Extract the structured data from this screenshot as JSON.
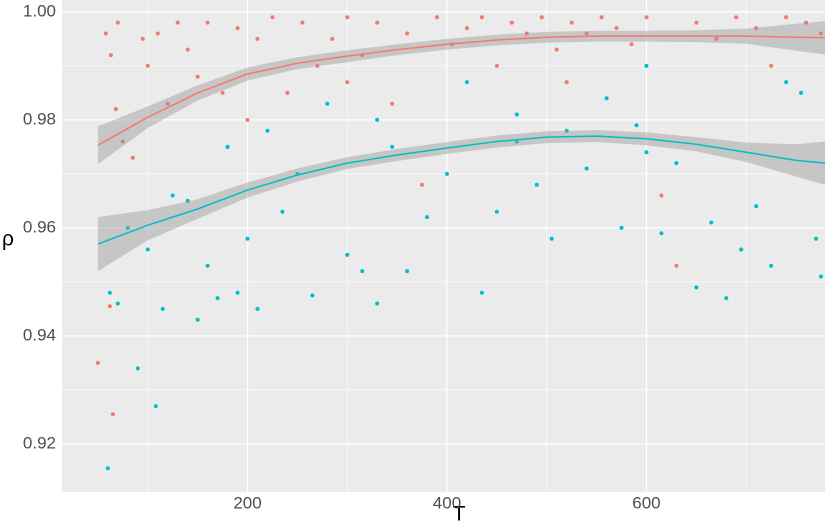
{
  "chart_data": {
    "type": "scatter",
    "x_label": "T",
    "y_label": "ρ",
    "xlim": [
      14,
      779
    ],
    "ylim": [
      0.9111,
      1.0022
    ],
    "xticks": [
      200,
      400,
      600
    ],
    "yticks": [
      {
        "value": 1,
        "label": "1.00"
      },
      0.98,
      0.96,
      0.94,
      0.92
    ],
    "x_minor_ticks": [
      100,
      300,
      500,
      700
    ],
    "y_minor_ticks": [
      0.93,
      0.95,
      0.97,
      0.99
    ],
    "grid": true,
    "series": [
      {
        "color": "#F8766D",
        "x": [
          50,
          62,
          65,
          58,
          63,
          70,
          68,
          75,
          85,
          95,
          100,
          110,
          120,
          130,
          140,
          150,
          160,
          175,
          190,
          200,
          210,
          225,
          240,
          255,
          270,
          285,
          300,
          315,
          330,
          345,
          360,
          375,
          390,
          405,
          420,
          435,
          450,
          465,
          480,
          495,
          510,
          525,
          540,
          555,
          570,
          585,
          600,
          615,
          630,
          650,
          670,
          690,
          710,
          725,
          740,
          760,
          775,
          300,
          180,
          520
        ],
        "values": [
          0.935,
          0.9455,
          0.9255,
          0.996,
          0.992,
          0.998,
          0.982,
          0.976,
          0.973,
          0.995,
          0.99,
          0.996,
          0.983,
          0.998,
          0.993,
          0.988,
          0.998,
          0.985,
          0.997,
          0.98,
          0.995,
          0.999,
          0.985,
          0.998,
          0.99,
          0.995,
          0.999,
          0.992,
          0.998,
          0.983,
          0.996,
          0.968,
          0.999,
          0.994,
          0.997,
          0.999,
          0.99,
          0.998,
          0.996,
          0.999,
          0.993,
          0.998,
          0.996,
          0.999,
          0.997,
          0.994,
          0.999,
          0.966,
          0.953,
          0.998,
          0.995,
          0.999,
          0.997,
          0.99,
          0.999,
          0.998,
          0.996,
          0.987,
          0.975,
          0.987
        ],
        "fit": {
          "x": [
            50,
            100,
            150,
            200,
            250,
            300,
            350,
            400,
            450,
            500,
            550,
            600,
            650,
            700,
            750,
            779
          ],
          "values": [
            0.9753,
            0.9805,
            0.985,
            0.9885,
            0.9905,
            0.9918,
            0.993,
            0.994,
            0.9948,
            0.9953,
            0.9955,
            0.9955,
            0.9955,
            0.9955,
            0.9953,
            0.9952
          ],
          "lower": [
            0.9718,
            0.9785,
            0.9836,
            0.9873,
            0.9894,
            0.9907,
            0.992,
            0.993,
            0.9938,
            0.9943,
            0.9945,
            0.9945,
            0.9944,
            0.9941,
            0.9928,
            0.9921
          ],
          "upper": [
            0.9788,
            0.9825,
            0.9864,
            0.9897,
            0.9916,
            0.9929,
            0.994,
            0.995,
            0.9958,
            0.9963,
            0.9965,
            0.9965,
            0.9966,
            0.9969,
            0.9978,
            0.9983
          ]
        }
      },
      {
        "color": "#00BFC4",
        "x": [
          60,
          70,
          62,
          80,
          90,
          108,
          100,
          115,
          125,
          140,
          150,
          160,
          170,
          180,
          190,
          200,
          210,
          220,
          235,
          250,
          265,
          280,
          300,
          315,
          330,
          345,
          360,
          380,
          400,
          420,
          435,
          450,
          470,
          490,
          505,
          520,
          540,
          560,
          575,
          590,
          600,
          615,
          630,
          650,
          665,
          680,
          695,
          710,
          725,
          740,
          755,
          770,
          775,
          330,
          470,
          600
        ],
        "values": [
          0.9155,
          0.946,
          0.948,
          0.96,
          0.934,
          0.927,
          0.956,
          0.945,
          0.966,
          0.965,
          0.943,
          0.953,
          0.947,
          0.975,
          0.948,
          0.958,
          0.945,
          0.978,
          0.963,
          0.97,
          0.9475,
          0.983,
          0.955,
          0.952,
          0.946,
          0.975,
          0.952,
          0.962,
          0.97,
          0.987,
          0.948,
          0.963,
          0.981,
          0.968,
          0.958,
          0.978,
          0.971,
          0.984,
          0.96,
          0.979,
          0.99,
          0.959,
          0.972,
          0.949,
          0.961,
          0.947,
          0.956,
          0.964,
          0.953,
          0.987,
          0.985,
          0.958,
          0.951,
          0.98,
          0.976,
          0.974
        ],
        "fit": {
          "x": [
            50,
            100,
            150,
            200,
            250,
            300,
            350,
            400,
            450,
            500,
            550,
            600,
            650,
            700,
            750,
            779
          ],
          "values": [
            0.957,
            0.9605,
            0.9635,
            0.967,
            0.9698,
            0.972,
            0.9735,
            0.9748,
            0.976,
            0.9768,
            0.977,
            0.9765,
            0.9755,
            0.974,
            0.9725,
            0.972
          ],
          "lower": [
            0.952,
            0.9577,
            0.9617,
            0.9656,
            0.9686,
            0.9709,
            0.9724,
            0.9737,
            0.9749,
            0.9757,
            0.9759,
            0.9753,
            0.9742,
            0.9722,
            0.9695,
            0.968
          ],
          "upper": [
            0.962,
            0.9633,
            0.9653,
            0.9684,
            0.971,
            0.9731,
            0.9746,
            0.9759,
            0.9771,
            0.9779,
            0.9781,
            0.9777,
            0.9768,
            0.9758,
            0.9755,
            0.976
          ]
        }
      }
    ]
  }
}
